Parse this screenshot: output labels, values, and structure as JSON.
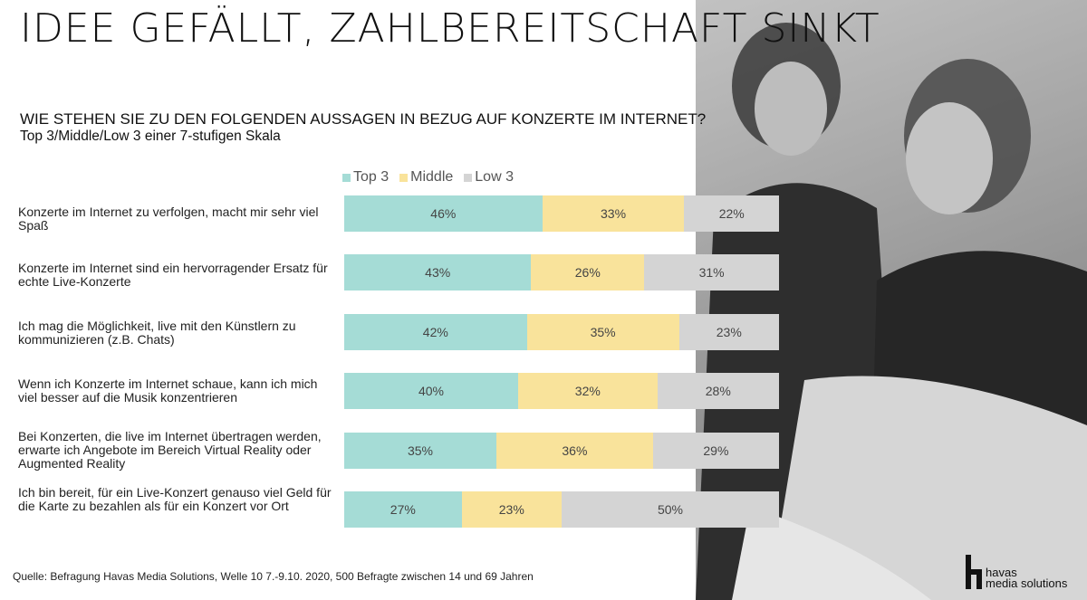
{
  "title": "IDEE GEFÄLLT, ZAHLBEREITSCHAFT SINKT",
  "question": "WIE STEHEN SIE ZU DEN FOLGENDEN AUSSAGEN IN BEZUG AUF KONZERTE IM INTERNET?",
  "subquestion": "Top 3/Middle/Low 3 einer 7-stufigen Skala",
  "source": "Quelle: Befragung Havas Media Solutions, Welle 10 7.-9.10. 2020, 500 Befragte zwischen 14 und 69 Jahren",
  "logo": {
    "line1": "havas",
    "line2": "media solutions"
  },
  "colors": {
    "top3": "#a5dcd6",
    "middle": "#f9e39b",
    "low3": "#d4d4d4"
  },
  "chart_data": {
    "type": "bar",
    "stacked": true,
    "orientation": "horizontal",
    "legend_position": "top",
    "categories": [
      "Konzerte im Internet zu verfolgen, macht mir sehr viel Spaß",
      "Konzerte im Internet sind ein hervorragender Ersatz für echte Live-Konzerte",
      "Ich mag die Möglichkeit, live mit den Künstlern zu kommunizieren (z.B. Chats)",
      "Wenn ich Konzerte im Internet schaue, kann ich mich viel besser auf die Musik konzentrieren",
      "Bei Konzerten, die live im Internet übertragen werden, erwarte ich Angebote im Bereich Virtual Reality oder Augmented Reality",
      "Ich bin bereit, für ein Live-Konzert genauso viel Geld für die Karte zu bezahlen als für ein Konzert vor Ort"
    ],
    "series": [
      {
        "name": "Top 3",
        "values": [
          46,
          43,
          42,
          40,
          35,
          27
        ],
        "labels": [
          "46%",
          "43%",
          "42%",
          "40%",
          "35%",
          "27%"
        ]
      },
      {
        "name": "Middle",
        "values": [
          33,
          26,
          35,
          32,
          36,
          23
        ],
        "labels": [
          "33%",
          "26%",
          "35%",
          "32%",
          "36%",
          "23%"
        ]
      },
      {
        "name": "Low 3",
        "values": [
          22,
          31,
          23,
          28,
          29,
          50
        ],
        "labels": [
          "22%",
          "31%",
          "23%",
          "28%",
          "29%",
          "50%"
        ]
      }
    ]
  }
}
